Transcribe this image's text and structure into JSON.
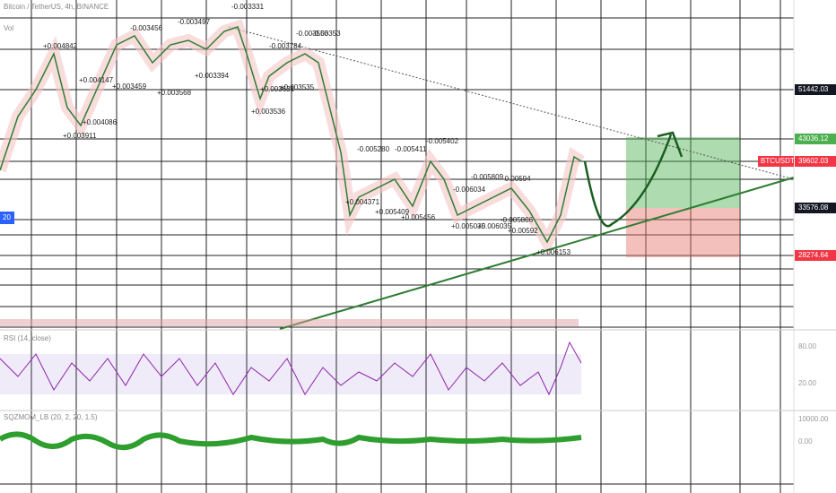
{
  "header": {
    "symbol": "Bitcoin / TetherUS, 4h, BINANCE",
    "indicator": "Vol",
    "rsi": "RSI (14, close)",
    "osc": "SQZMOM_LB (20, 2, 20, 1.5)"
  },
  "price_axis": [
    {
      "text": "51442.03",
      "kind": "dark"
    },
    {
      "text": "43036.12",
      "kind": "green"
    },
    {
      "text": "39602.03",
      "kind": "red"
    },
    {
      "text": "33576.08",
      "kind": "dark"
    },
    {
      "text": "28274.64",
      "kind": "red"
    }
  ],
  "symbol_tag": "BTCUSDT",
  "left_tag": "20",
  "lower_axis": [
    "80.00",
    "20.00",
    "10000.00",
    "0.00"
  ],
  "annotations": [
    "-0.003331",
    "+0.004842",
    "-0.003456",
    "-0.003497",
    "+0.004147",
    "-0.003784",
    "-0.003553",
    "-0.00353",
    "+0.003459",
    "+0.003568",
    "+0.003394",
    "+0.003631",
    "+0.003535",
    "+0.004086",
    "+0.003911",
    "+0.003536",
    "-0.005402",
    "-0.005280",
    "-0.005411",
    "-0.005809",
    "-0.006034",
    "-0.00594",
    "+0.004371",
    "+0.005409",
    "+0.005456",
    "-0.005806",
    "+0.005035",
    "+0.006035",
    "+0.00592",
    "+0.006153"
  ]
}
